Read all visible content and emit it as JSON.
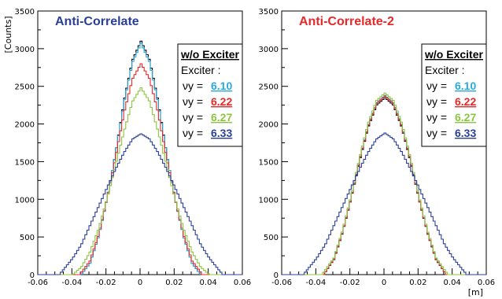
{
  "chart_data": [
    {
      "type": "line",
      "title": "Anti-Correlate",
      "title_color": "#2a3f9a",
      "ylabel": "[Counts]",
      "xlabel": "",
      "xlim": [
        -0.06,
        0.06
      ],
      "ylim": [
        0,
        3500
      ],
      "xticks": [
        "-0.06",
        "-0.04",
        "-0.02",
        "0",
        "0.02",
        "0.04",
        "0.06"
      ],
      "yticks": [
        "0",
        "500",
        "1000",
        "1500",
        "2000",
        "2500",
        "3000",
        "3500"
      ],
      "legend": {
        "title": "w/o Exciter",
        "subtitle": "Exciter :",
        "symbol": "νy =",
        "entries": [
          {
            "value": "6.10",
            "color": "#29a9e0"
          },
          {
            "value": "6.22",
            "color": "#e8282a"
          },
          {
            "value": "6.27",
            "color": "#8cc63f"
          },
          {
            "value": "6.33",
            "color": "#2a3f9a"
          }
        ]
      },
      "series": [
        {
          "color": "#000000",
          "x": [
            -0.035,
            -0.03,
            -0.025,
            -0.02,
            -0.015,
            -0.01,
            -0.005,
            0.0,
            0.005,
            0.01,
            0.015,
            0.02,
            0.025,
            0.03,
            0.035
          ],
          "y": [
            0,
            150,
            500,
            1000,
            1600,
            2300,
            2850,
            3100,
            2850,
            2300,
            1600,
            1000,
            500,
            150,
            0
          ]
        },
        {
          "color": "#29a9e0",
          "x": [
            -0.035,
            -0.03,
            -0.025,
            -0.02,
            -0.015,
            -0.01,
            -0.005,
            0.0,
            0.005,
            0.01,
            0.015,
            0.02,
            0.025,
            0.03,
            0.035
          ],
          "y": [
            0,
            150,
            500,
            1000,
            1600,
            2280,
            2820,
            3070,
            2820,
            2280,
            1600,
            1000,
            500,
            150,
            0
          ]
        },
        {
          "color": "#e8282a",
          "x": [
            -0.036,
            -0.03,
            -0.025,
            -0.02,
            -0.015,
            -0.01,
            -0.005,
            0.0,
            0.005,
            0.01,
            0.015,
            0.02,
            0.025,
            0.03,
            0.036
          ],
          "y": [
            0,
            180,
            520,
            1000,
            1550,
            2150,
            2600,
            2800,
            2600,
            2150,
            1550,
            1000,
            520,
            180,
            0
          ]
        },
        {
          "color": "#8cc63f",
          "x": [
            -0.04,
            -0.035,
            -0.03,
            -0.025,
            -0.02,
            -0.015,
            -0.01,
            -0.005,
            0.0,
            0.005,
            0.01,
            0.015,
            0.02,
            0.025,
            0.03,
            0.035,
            0.04
          ],
          "y": [
            0,
            100,
            300,
            600,
            1000,
            1450,
            1900,
            2300,
            2480,
            2300,
            1900,
            1450,
            1000,
            600,
            300,
            100,
            0
          ]
        },
        {
          "color": "#2a3f9a",
          "x": [
            -0.048,
            -0.045,
            -0.04,
            -0.035,
            -0.03,
            -0.025,
            -0.02,
            -0.015,
            -0.01,
            -0.005,
            0.0,
            0.005,
            0.01,
            0.015,
            0.02,
            0.025,
            0.03,
            0.035,
            0.04,
            0.045,
            0.048
          ],
          "y": [
            0,
            80,
            220,
            400,
            650,
            900,
            1150,
            1400,
            1620,
            1800,
            1870,
            1800,
            1620,
            1400,
            1150,
            900,
            650,
            400,
            220,
            80,
            0
          ]
        }
      ]
    },
    {
      "type": "line",
      "title": "Anti-Correlate-2",
      "title_color": "#e8282a",
      "ylabel": "",
      "xlabel": "[m]",
      "xlim": [
        -0.06,
        0.06
      ],
      "ylim": [
        0,
        3500
      ],
      "xticks": [
        "-0.06",
        "-0.04",
        "-0.02",
        "0",
        "0.02",
        "0.04",
        "0.06"
      ],
      "yticks": [
        "0",
        "500",
        "1000",
        "1500",
        "2000",
        "2500",
        "3000",
        "3500"
      ],
      "legend": {
        "title": "w/o Exciter",
        "subtitle": "Exciter :",
        "symbol": "νy =",
        "entries": [
          {
            "value": "6.10",
            "color": "#29a9e0"
          },
          {
            "value": "6.22",
            "color": "#e8282a"
          },
          {
            "value": "6.27",
            "color": "#8cc63f"
          },
          {
            "value": "6.33",
            "color": "#2a3f9a"
          }
        ]
      },
      "series": [
        {
          "color": "#000000",
          "x": [
            -0.036,
            -0.03,
            -0.025,
            -0.02,
            -0.015,
            -0.01,
            -0.005,
            0.0,
            0.005,
            0.01,
            0.015,
            0.02,
            0.025,
            0.03,
            0.036
          ],
          "y": [
            0,
            200,
            550,
            1000,
            1500,
            1950,
            2250,
            2350,
            2250,
            1950,
            1500,
            1000,
            550,
            200,
            0
          ]
        },
        {
          "color": "#29a9e0",
          "x": [
            -0.036,
            -0.03,
            -0.025,
            -0.02,
            -0.015,
            -0.01,
            -0.005,
            0.0,
            0.005,
            0.01,
            0.015,
            0.02,
            0.025,
            0.03,
            0.036
          ],
          "y": [
            0,
            210,
            560,
            1010,
            1520,
            1970,
            2280,
            2380,
            2280,
            1970,
            1520,
            1010,
            560,
            210,
            0
          ]
        },
        {
          "color": "#e8282a",
          "x": [
            -0.036,
            -0.03,
            -0.025,
            -0.02,
            -0.015,
            -0.01,
            -0.005,
            0.0,
            0.005,
            0.01,
            0.015,
            0.02,
            0.025,
            0.03,
            0.036
          ],
          "y": [
            0,
            205,
            555,
            1005,
            1510,
            1960,
            2270,
            2370,
            2270,
            1960,
            1510,
            1005,
            555,
            205,
            0
          ]
        },
        {
          "color": "#8cc63f",
          "x": [
            -0.037,
            -0.03,
            -0.025,
            -0.02,
            -0.015,
            -0.01,
            -0.005,
            0.0,
            0.005,
            0.01,
            0.015,
            0.02,
            0.025,
            0.03,
            0.037
          ],
          "y": [
            0,
            220,
            580,
            1030,
            1540,
            2000,
            2310,
            2410,
            2310,
            2000,
            1540,
            1030,
            580,
            220,
            0
          ]
        },
        {
          "color": "#2a3f9a",
          "x": [
            -0.048,
            -0.045,
            -0.04,
            -0.035,
            -0.03,
            -0.025,
            -0.02,
            -0.015,
            -0.01,
            -0.005,
            0.0,
            0.005,
            0.01,
            0.015,
            0.02,
            0.025,
            0.03,
            0.035,
            0.04,
            0.045,
            0.048
          ],
          "y": [
            0,
            80,
            220,
            400,
            650,
            900,
            1150,
            1400,
            1620,
            1800,
            1880,
            1800,
            1620,
            1400,
            1150,
            900,
            650,
            400,
            220,
            80,
            0
          ]
        }
      ]
    }
  ]
}
